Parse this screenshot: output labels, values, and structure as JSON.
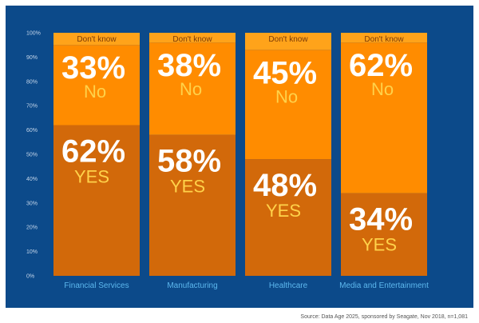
{
  "chart_data": {
    "type": "bar",
    "stacked": true,
    "categories": [
      "Financial Services",
      "Manufacturing",
      "Healthcare",
      "Media and Entertainment"
    ],
    "series": [
      {
        "name": "YES",
        "values": [
          62,
          58,
          48,
          34
        ],
        "color": "#d2690a"
      },
      {
        "name": "No",
        "values": [
          33,
          38,
          45,
          62
        ],
        "color": "#ff8c00"
      },
      {
        "name": "Don't know",
        "values": [
          5,
          4,
          7,
          4
        ],
        "color": "#ffa31a"
      }
    ],
    "segment_labels": {
      "yes": [
        "62%",
        "58%",
        "48%",
        "34%"
      ],
      "no": [
        "33%",
        "38%",
        "45%",
        "62%"
      ],
      "yes_word": "YES",
      "no_word": "No",
      "dont_know_word": "Don't know"
    },
    "yticks": [
      "0%",
      "10%",
      "20%",
      "30%",
      "40%",
      "50%",
      "60%",
      "70%",
      "80%",
      "90%",
      "100%"
    ],
    "ylim": [
      0,
      100
    ],
    "background": "#0c4a8a"
  },
  "source": "Source: Data Age 2025, sponsored by Seagate, Nov 2018, n=1,081"
}
